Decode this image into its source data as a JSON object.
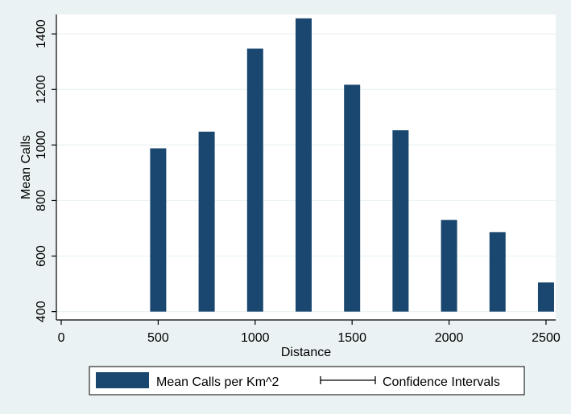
{
  "chart_data": {
    "type": "bar",
    "title": "",
    "xlabel": "Distance",
    "ylabel": "Mean Calls",
    "x": [
      500,
      750,
      1000,
      1250,
      1500,
      1750,
      2000,
      2250,
      2500
    ],
    "series": [
      {
        "name": "Mean Calls per Km^2",
        "values": [
          988,
          1048,
          1347,
          1456,
          1217,
          1053,
          730,
          686,
          505
        ],
        "color": "#1a476f"
      }
    ],
    "xlim": [
      -25,
      2550
    ],
    "ylim": [
      370,
      1470
    ],
    "bar_base": 400,
    "xticks": [
      0,
      500,
      1000,
      1500,
      2000,
      2500
    ],
    "yticks": [
      400,
      600,
      800,
      1000,
      1200,
      1400
    ],
    "grid": true,
    "legend": {
      "placement": "bottom",
      "entries": [
        {
          "label": "Mean Calls per Km^2",
          "kind": "bar",
          "color": "#1a476f"
        },
        {
          "label": "Confidence Intervals",
          "kind": "errorbar",
          "color": "#000000"
        }
      ]
    }
  },
  "colors": {
    "background": "#eaf2f3",
    "plot_area": "#ffffff",
    "gridline": "#eaf2f3",
    "bar": "#1a476f"
  }
}
